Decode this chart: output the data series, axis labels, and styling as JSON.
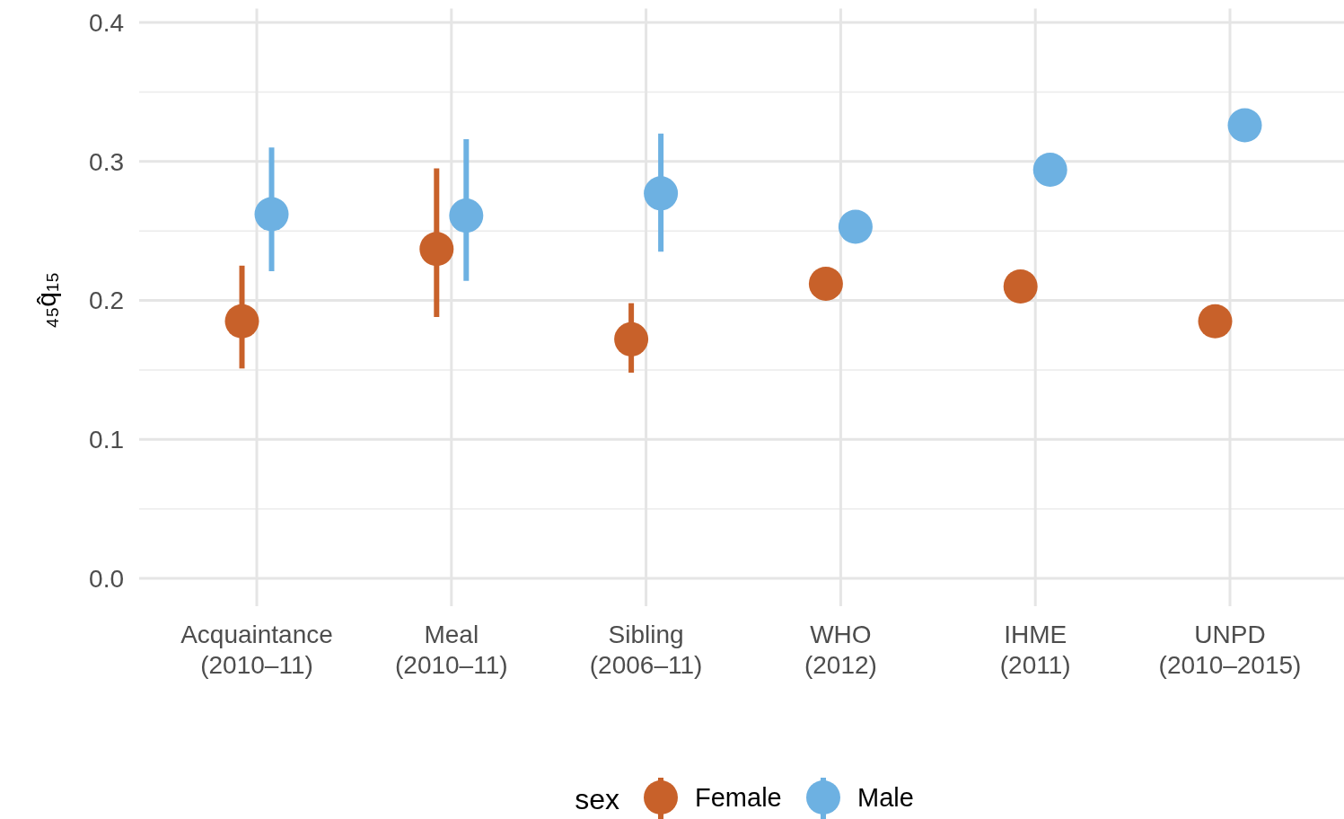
{
  "chart_data": {
    "type": "scatter",
    "ylabel": "₄₅q̂₁₅",
    "legend_title": "sex",
    "categories": [
      "Acquaintance\n(2010–11)",
      "Meal\n(2010–11)",
      "Sibling\n(2006–11)",
      "WHO\n(2012)",
      "IHME\n(2011)",
      "UNPD\n(2010–2015)"
    ],
    "series": [
      {
        "name": "Female",
        "color": "#c8612a",
        "values": [
          0.185,
          0.237,
          0.172,
          0.212,
          0.21,
          0.185
        ],
        "errors": [
          [
            0.151,
            0.225
          ],
          [
            0.188,
            0.295
          ],
          [
            0.148,
            0.198
          ],
          null,
          null,
          null
        ]
      },
      {
        "name": "Male",
        "color": "#6db1e2",
        "values": [
          0.262,
          0.261,
          0.277,
          0.253,
          0.294,
          0.326
        ],
        "errors": [
          [
            0.221,
            0.31
          ],
          [
            0.214,
            0.316
          ],
          [
            0.235,
            0.32
          ],
          null,
          null,
          null
        ]
      }
    ],
    "ylim": [
      -0.02,
      0.41
    ],
    "yticks": [
      {
        "value": 0,
        "label": "0.0"
      },
      0.1,
      0.2,
      0.3,
      0.4
    ],
    "grid": true,
    "legend": "bottom",
    "marker": "circle"
  }
}
